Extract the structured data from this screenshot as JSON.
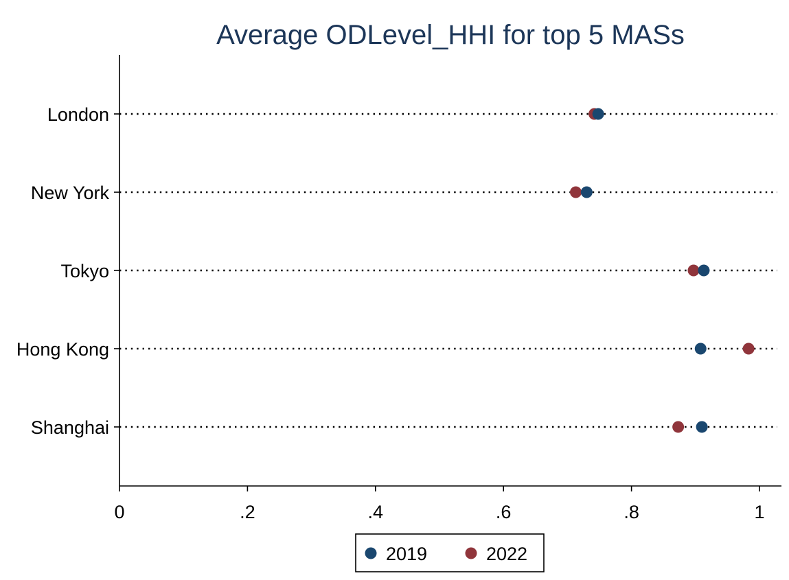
{
  "chart_data": {
    "type": "scatter",
    "subtype": "dot-plot",
    "title": "Average ODLevel_HHI for top 5 MASs",
    "categories": [
      "London",
      "New York",
      "Tokyo",
      "Hong Kong",
      "Shanghai"
    ],
    "series": [
      {
        "name": "2019",
        "color": "#1a476f",
        "values": [
          0.748,
          0.73,
          0.913,
          0.908,
          0.91
        ]
      },
      {
        "name": "2022",
        "color": "#90353b",
        "values": [
          0.742,
          0.713,
          0.897,
          0.983,
          0.873
        ]
      }
    ],
    "xlabel": "",
    "ylabel": "",
    "xlim": [
      0,
      1.03
    ],
    "xticks": [
      0,
      0.2,
      0.4,
      0.6,
      0.8,
      1
    ],
    "xtick_labels": [
      "0",
      ".2",
      ".4",
      ".6",
      ".8",
      "1"
    ],
    "grid": "dotted category lines",
    "legend_position": "bottom"
  }
}
